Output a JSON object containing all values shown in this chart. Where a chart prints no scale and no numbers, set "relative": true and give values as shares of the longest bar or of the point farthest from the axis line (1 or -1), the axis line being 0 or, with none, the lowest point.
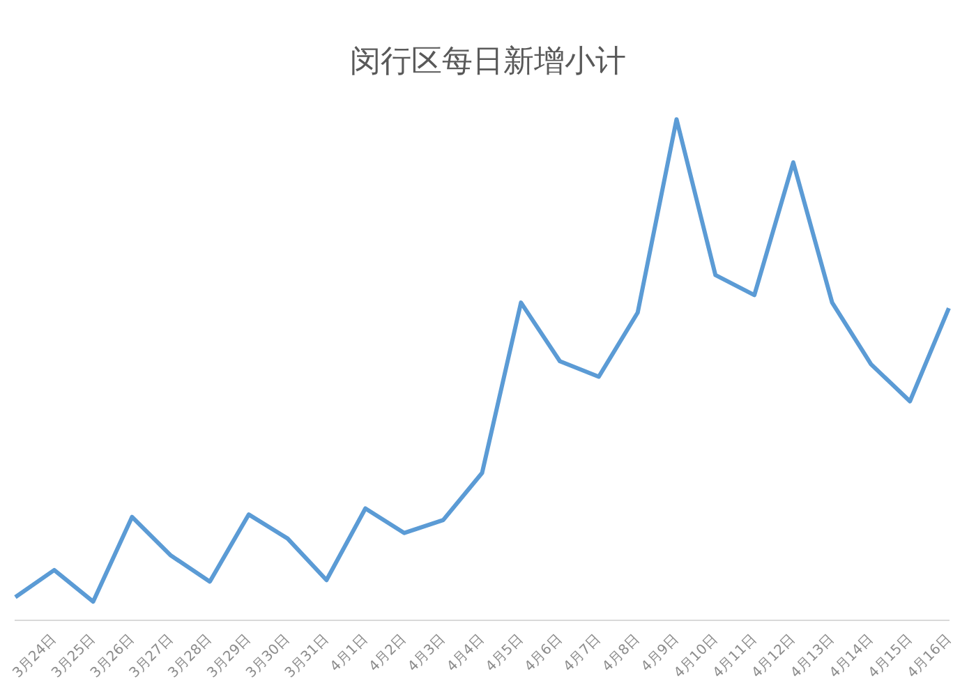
{
  "chart_data": {
    "type": "line",
    "title": "闵行区每日新增小计",
    "relative": true,
    "grid": false,
    "legend": false,
    "marker": "none",
    "line_style": "solid",
    "categories": [
      null,
      "3月24日",
      "3月25日",
      "3月26日",
      "3月27日",
      "3月28日",
      "3月29日",
      "3月30日",
      "3月31日",
      "4月1日",
      "4月2日",
      "4月3日",
      "4月4日",
      "4月5日",
      "4月6日",
      "4月7日",
      "4月8日",
      "4月9日",
      "4月10日",
      "4月11日",
      "4月12日",
      "4月13日",
      "4月14日",
      "4月15日",
      "4月16日"
    ],
    "series": [
      {
        "color": "#5b9bd5",
        "values": [
          0.046,
          0.1,
          0.037,
          0.206,
          0.129,
          0.077,
          0.211,
          0.163,
          0.08,
          0.223,
          0.174,
          0.2,
          0.294,
          0.634,
          0.517,
          0.486,
          0.614,
          1,
          0.689,
          0.649,
          0.914,
          0.634,
          0.511,
          0.437,
          0.623
        ]
      }
    ]
  }
}
